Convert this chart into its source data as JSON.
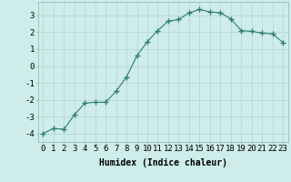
{
  "x": [
    0,
    1,
    2,
    3,
    4,
    5,
    6,
    7,
    8,
    9,
    10,
    11,
    12,
    13,
    14,
    15,
    16,
    17,
    18,
    19,
    20,
    21,
    22,
    23
  ],
  "y": [
    -4.0,
    -3.7,
    -3.75,
    -2.9,
    -2.2,
    -2.15,
    -2.15,
    -1.5,
    -0.65,
    0.6,
    1.45,
    2.1,
    2.65,
    2.75,
    3.15,
    3.35,
    3.2,
    3.15,
    2.8,
    2.1,
    2.05,
    1.95,
    1.9,
    1.4
  ],
  "line_color": "#2e7d6e",
  "marker": "+",
  "marker_size": 4,
  "bg_color": "#cdecea",
  "grid_color": "#b8d8d5",
  "xlabel": "Humidex (Indice chaleur)",
  "xlabel_fontsize": 7,
  "tick_fontsize": 6.5,
  "ylim": [
    -4.5,
    3.8
  ],
  "xlim": [
    -0.5,
    23.5
  ],
  "yticks": [
    -4,
    -3,
    -2,
    -1,
    0,
    1,
    2,
    3
  ],
  "xticks": [
    0,
    1,
    2,
    3,
    4,
    5,
    6,
    7,
    8,
    9,
    10,
    11,
    12,
    13,
    14,
    15,
    16,
    17,
    18,
    19,
    20,
    21,
    22,
    23
  ]
}
